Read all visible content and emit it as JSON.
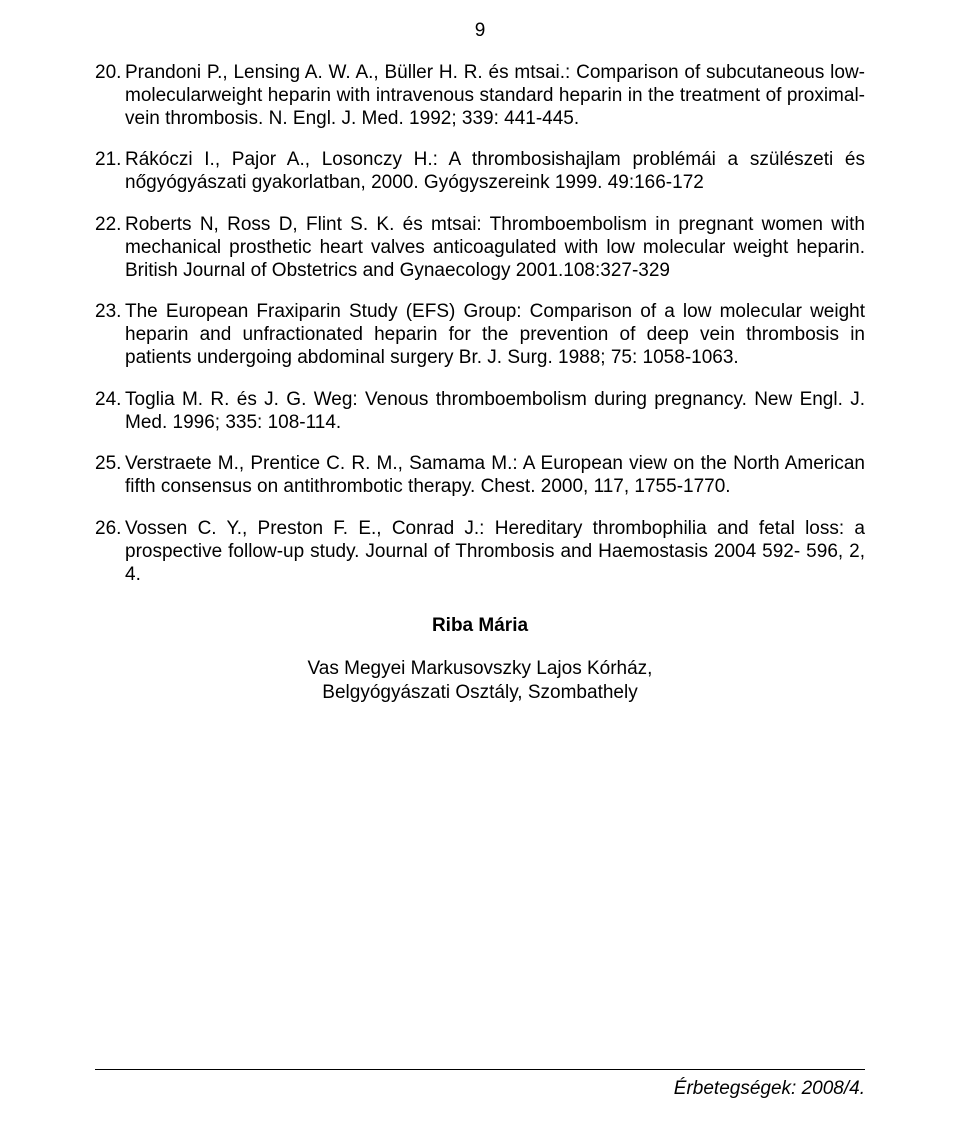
{
  "page_number": "9",
  "references": [
    {
      "num": "20.",
      "text": "Prandoni P., Lensing A. W. A., Büller H. R. és mtsai.: Comparison of subcutaneous low-molecularweight heparin with intravenous standard heparin in the treatment of proximal-vein thrombosis. N. Engl. J. Med. 1992; 339: 441-445."
    },
    {
      "num": "21.",
      "text": "Rákóczi I., Pajor A., Losonczy H.: A thrombosishajlam problémái a szülészeti és nőgyógyászati gyakorlatban, 2000. Gyógyszereink 1999. 49:166-172"
    },
    {
      "num": "22.",
      "text": "Roberts N, Ross D, Flint S. K. és mtsai: Thromboembolism in pregnant women with mechanical prosthetic heart valves anticoagulated with low molecular weight heparin. British Journal of Obstetrics and Gynaecology 2001.108:327-329"
    },
    {
      "num": "23.",
      "text": "The European Fraxiparin Study (EFS) Group: Comparison of a low molecular weight heparin and unfractionated heparin for the prevention of deep vein thrombosis in patients undergoing abdominal surgery Br. J. Surg. 1988; 75: 1058-1063."
    },
    {
      "num": "24.",
      "text": "Toglia M. R. és J. G. Weg: Venous thromboembolism during pregnancy. New Engl. J. Med. 1996; 335: 108-114."
    },
    {
      "num": "25.",
      "text": "Verstraete M., Prentice C. R. M., Samama M.: A European view on the North American fifth consensus on antithrombotic therapy. Chest. 2000, 117, 1755-1770."
    },
    {
      "num": "26.",
      "text": "Vossen C. Y., Preston F. E., Conrad J.: Hereditary thrombophilia and fetal loss: a prospective follow-up study. Journal of Thrombosis and Haemostasis 2004 592- 596, 2, 4."
    }
  ],
  "author": {
    "name": "Riba Mária",
    "affiliation_line1": "Vas Megyei Markusovszky Lajos Kórház,",
    "affiliation_line2": "Belgyógyászati Osztály, Szombathely"
  },
  "footer": "Érbetegségek: 2008/4."
}
